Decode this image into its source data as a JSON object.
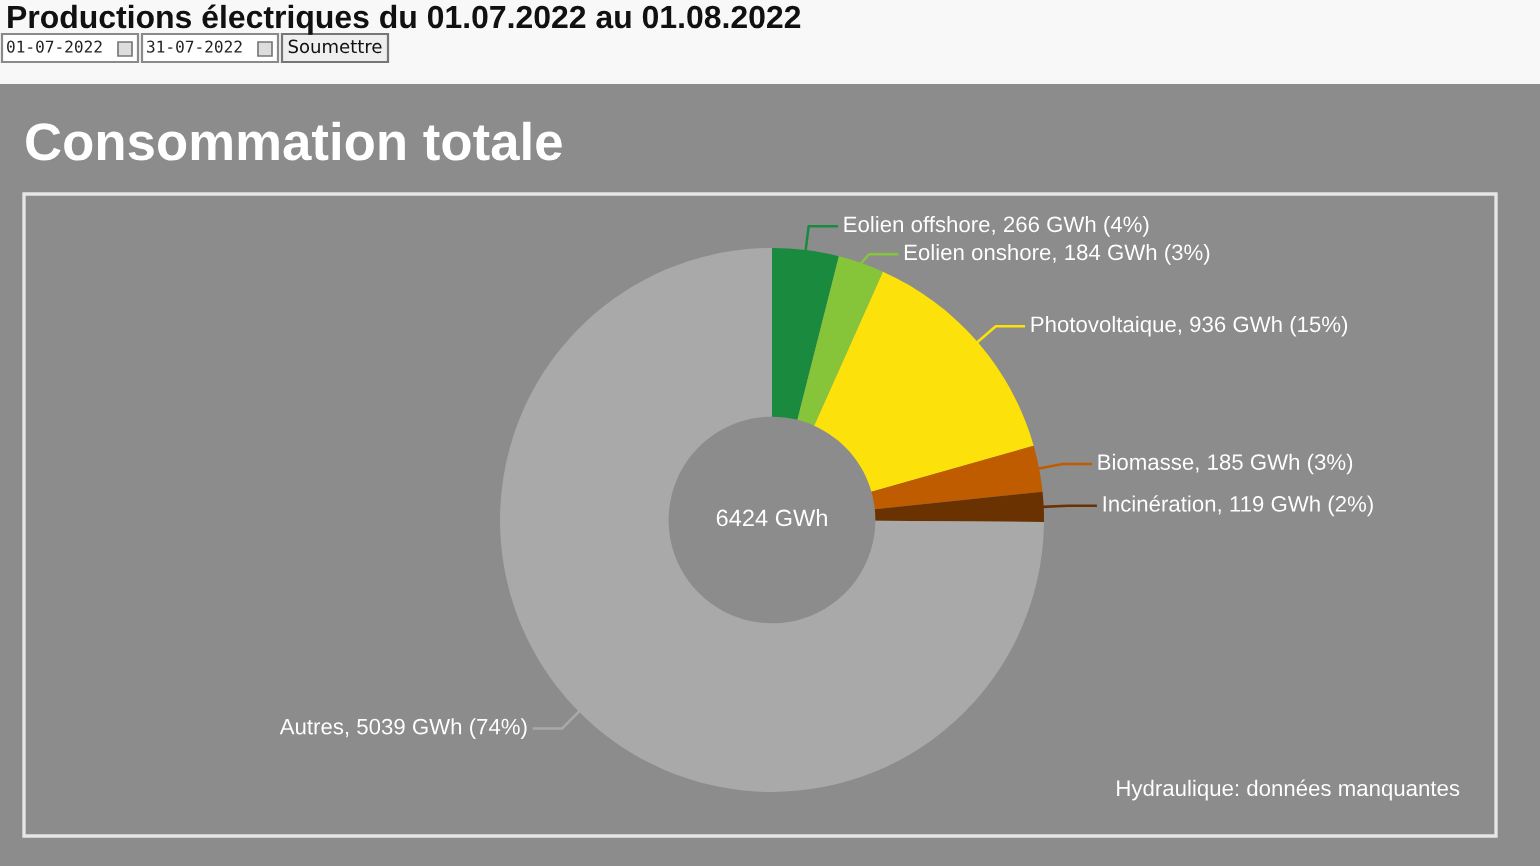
{
  "chart_data": {
    "type": "donut",
    "title": "Productions électriques du 01.07.2022 au 01.08.2022",
    "subtitle": "Consommation totale",
    "categories": [
      "Eolien offshore",
      "Eolien onshore",
      "Photovoltaique",
      "Biomasse",
      "Incinération",
      "Autres"
    ],
    "values": [
      266,
      184,
      936,
      185,
      119,
      5039
    ],
    "colors": [
      "#1a8a3e",
      "#86c53a",
      "#fde10a",
      "#c05c00",
      "#6a3200",
      "#a9a9a9"
    ],
    "value_labels": [
      "266 GWh (4%)",
      "184 GWh (3%)",
      "936 GWh (15%)",
      "185 GWh (3%)",
      "119 GWh (2%)",
      "5039 GWh (74%)"
    ],
    "annotations": [
      "6424 GWh",
      "Hydraulique: données manquantes",
      "01-07-2022",
      "31-07-2022",
      "Soumettre"
    ]
  }
}
